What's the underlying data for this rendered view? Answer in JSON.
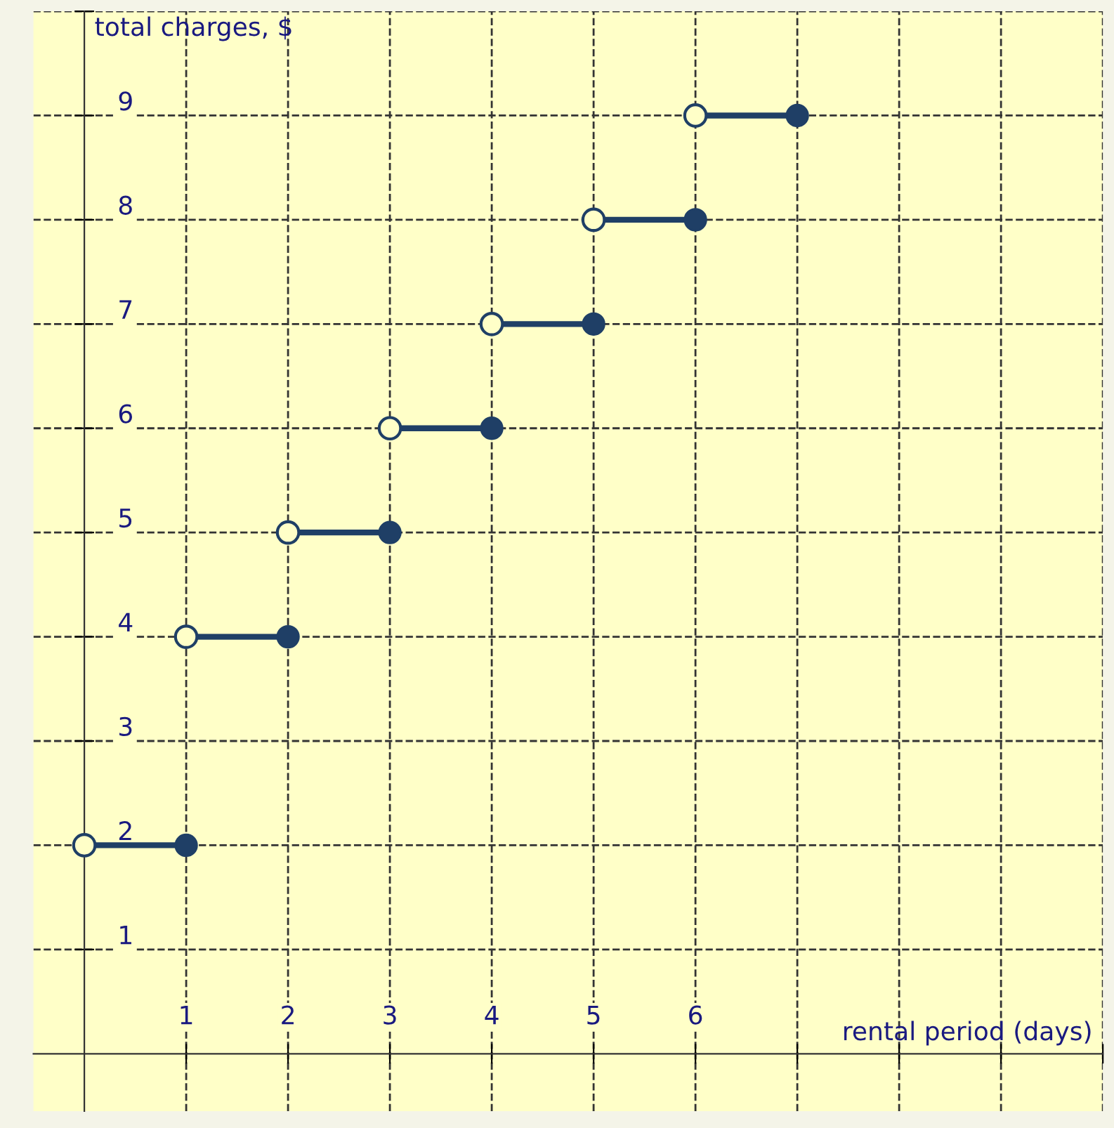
{
  "chart_data": {
    "type": "line",
    "ylabel": "total charges, $",
    "xlabel": "rental period (days)",
    "series": [
      {
        "color": "#1f3f66",
        "x": [
          0,
          1
        ],
        "values": [
          2,
          2
        ]
      },
      {
        "color": "#1f3f66",
        "x": [
          1,
          2
        ],
        "values": [
          4,
          4
        ]
      },
      {
        "color": "#1f3f66",
        "x": [
          2,
          3
        ],
        "values": [
          5,
          5
        ]
      },
      {
        "color": "#1f3f66",
        "x": [
          3,
          4
        ],
        "values": [
          6,
          6
        ]
      },
      {
        "color": "#1f3f66",
        "x": [
          4,
          5
        ],
        "values": [
          7,
          7
        ]
      },
      {
        "color": "#1f3f66",
        "x": [
          5,
          6
        ],
        "values": [
          8,
          8
        ]
      },
      {
        "color": "#1f3f66",
        "x": [
          6,
          7
        ],
        "values": [
          9,
          9
        ]
      }
    ],
    "marker": "circle",
    "grid": true,
    "xlim": [
      -0.5,
      10
    ],
    "ylim": [
      -0.55,
      10
    ],
    "xticks": [
      1,
      2,
      3,
      4,
      5,
      6,
      {
        "value": 7,
        "label": null
      },
      {
        "value": 8,
        "label": null
      },
      {
        "value": 9,
        "label": null
      },
      {
        "value": 10,
        "label": null
      }
    ],
    "yticks": [
      1,
      2,
      3,
      4,
      5,
      6,
      7,
      8,
      9,
      {
        "value": 10,
        "label": null
      }
    ]
  }
}
